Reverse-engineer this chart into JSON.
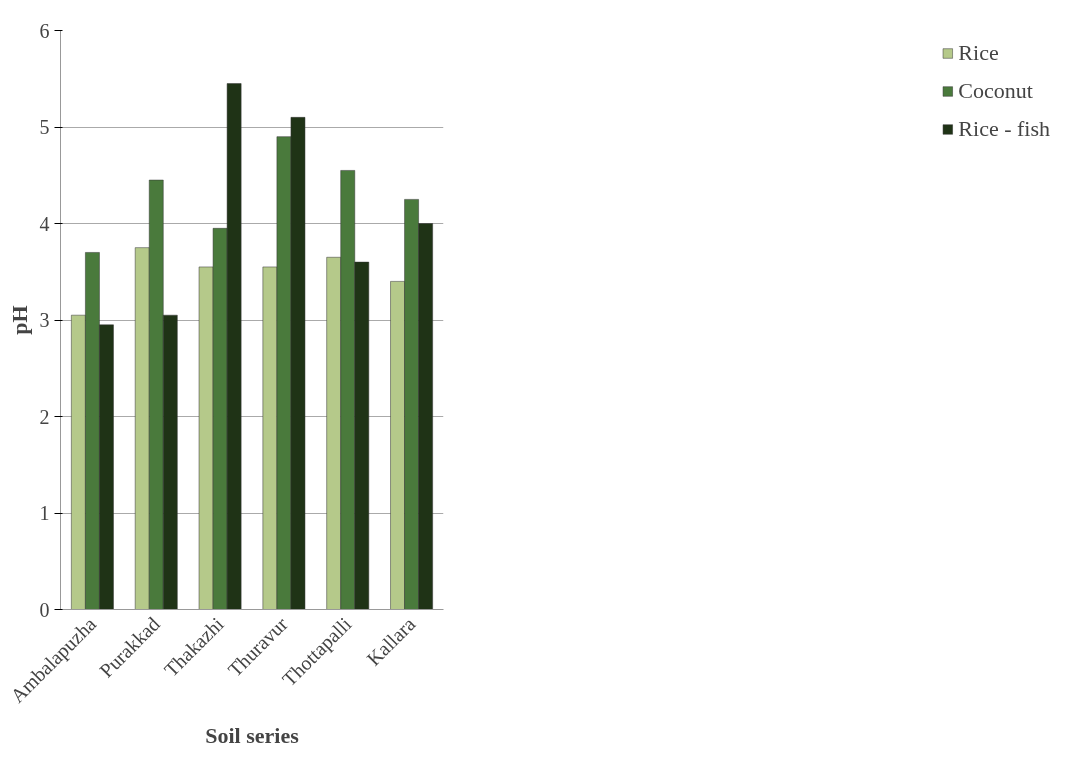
{
  "chart_data": {
    "type": "bar",
    "xlabel": "Soil series",
    "ylabel": "pH",
    "categories": [
      "Ambalapuzha",
      "Purakkad",
      "Thakazhi",
      "Thuravur",
      "Thottapalli",
      "Kallara"
    ],
    "series": [
      {
        "name": "Rice",
        "color": "#b5c98a",
        "values": [
          3.05,
          3.75,
          3.55,
          3.55,
          3.65,
          3.4
        ]
      },
      {
        "name": "Coconut",
        "color": "#4a7a3c",
        "values": [
          3.7,
          4.45,
          3.95,
          4.9,
          4.55,
          4.25
        ]
      },
      {
        "name": "Rice - fish",
        "color": "#1f3316",
        "values": [
          2.95,
          3.05,
          5.45,
          5.1,
          3.6,
          4.0
        ]
      }
    ],
    "ylim": [
      0,
      6
    ],
    "yticks": [
      0,
      1,
      2,
      3,
      4,
      5,
      6
    ],
    "grid": "y",
    "legend": "right"
  }
}
